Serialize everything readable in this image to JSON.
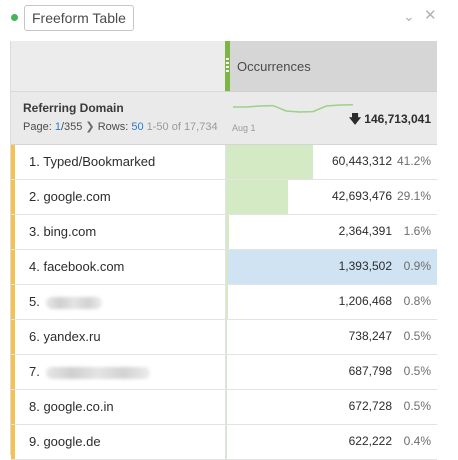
{
  "panel": {
    "title": "Freeform Table",
    "status_color": "#44b556",
    "chevron_icon": "chevron-down-icon",
    "close_icon": "close-icon"
  },
  "table": {
    "metric_header": "Occurrences",
    "dimension_name": "Referring Domain",
    "pager": {
      "page_prefix": "Page:",
      "page_current": "1",
      "page_total": "/355",
      "rows_label": "Rows:",
      "rows_value": "50",
      "range_text": "1-50 of 17,734"
    },
    "sparkline_label": "Aug 1",
    "sparkline_values": [
      0.55,
      0.55,
      0.6,
      0.62,
      0.35,
      0.3,
      0.32,
      0.6,
      0.65,
      0.66
    ],
    "total": "146,713,041",
    "total_icon": "arrow-down-icon",
    "rows": [
      {
        "label": "1. Typed/Bookmarked",
        "value": "60,443,312",
        "pct": "41.2%",
        "fraction": 0.412,
        "blurred": false
      },
      {
        "label": "2. google.com",
        "value": "42,693,476",
        "pct": "29.1%",
        "fraction": 0.291,
        "blurred": false
      },
      {
        "label": "3. bing.com",
        "value": "2,364,391",
        "pct": "1.6%",
        "fraction": 0.016,
        "blurred": false
      },
      {
        "label": "4. facebook.com",
        "value": "1,393,502",
        "pct": "0.9%",
        "fraction": 0.009,
        "blurred": false,
        "highlight": true
      },
      {
        "label": "5.",
        "value": "1,206,468",
        "pct": "0.8%",
        "fraction": 0.008,
        "blurred": true
      },
      {
        "label": "6. yandex.ru",
        "value": "738,247",
        "pct": "0.5%",
        "fraction": 0.005,
        "blurred": false
      },
      {
        "label": "7.",
        "value": "687,798",
        "pct": "0.5%",
        "fraction": 0.005,
        "blurred": true
      },
      {
        "label": "8. google.co.in",
        "value": "672,728",
        "pct": "0.5%",
        "fraction": 0.005,
        "blurred": false
      },
      {
        "label": "9. google.de",
        "value": "622,222",
        "pct": "0.4%",
        "fraction": 0.004,
        "blurred": false
      }
    ]
  }
}
